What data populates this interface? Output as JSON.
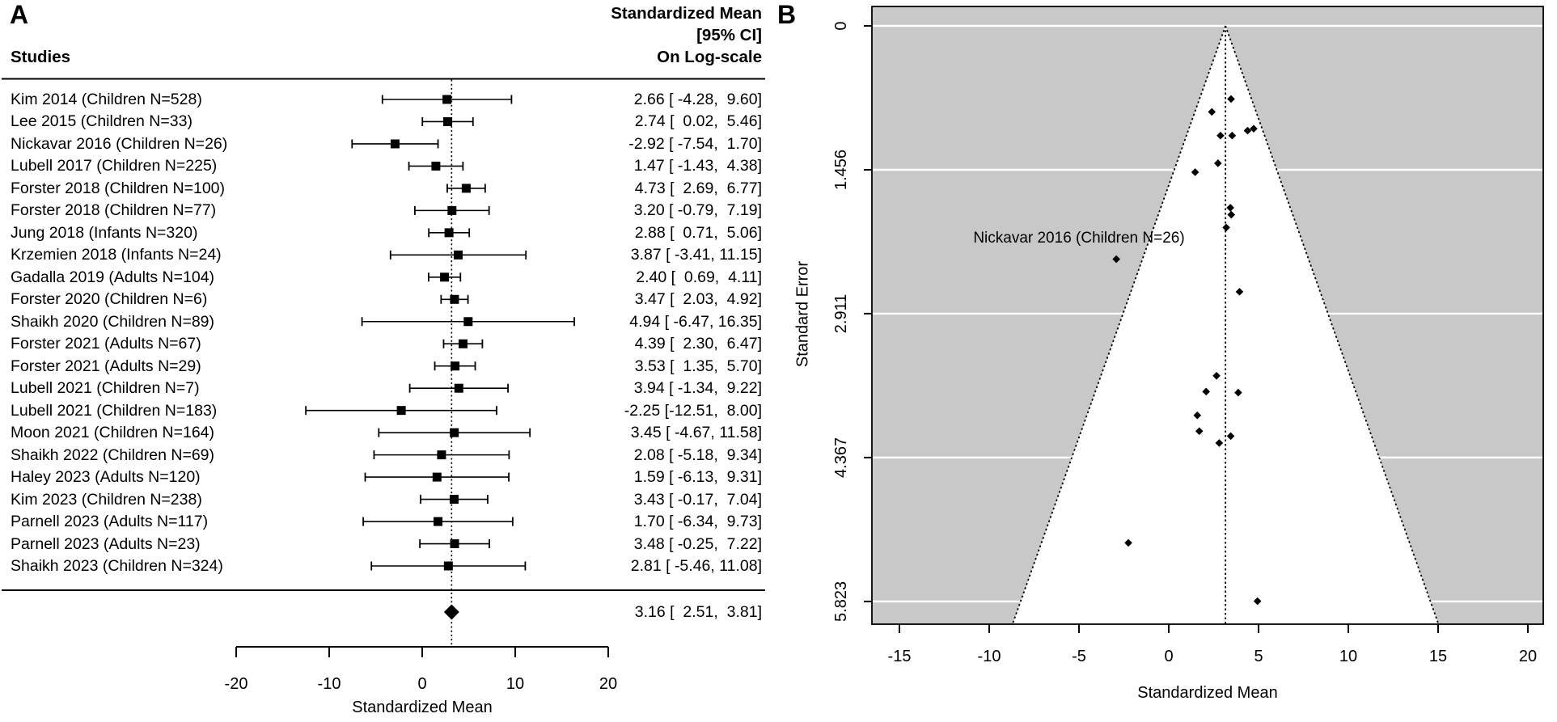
{
  "panel_a": {
    "label": "A",
    "col_header_left": "Studies",
    "col_header_right_lines": [
      "Standardized Mean",
      "[95% CI]",
      "On Log-scale"
    ],
    "xlabel": "Standardized Mean",
    "x_ticks": [
      -20,
      -10,
      0,
      10,
      20
    ]
  },
  "panel_b": {
    "label": "B",
    "xlabel": "Standardized Mean",
    "ylabel": "Standard Error",
    "x_ticks": [
      -15,
      -10,
      -5,
      0,
      5,
      10,
      15,
      20
    ],
    "y_tick_labels": [
      "0",
      "1.456",
      "2.911",
      "4.367",
      "5.823"
    ],
    "annotation": {
      "text": "Nickavar 2016 (Children N=26)",
      "x": -2.92,
      "se": 2.36
    },
    "center_line": 3.16
  },
  "chart_data": [
    {
      "type": "forest",
      "panel": "A",
      "studies_header": "Studies",
      "value_header": "Standardized Mean [95% CI] On Log-scale",
      "xlabel": "Standardized Mean",
      "x_ticks": [
        -20,
        -10,
        0,
        10,
        20
      ],
      "xlim": [
        -20,
        20
      ],
      "center_line": 3.16,
      "studies": [
        {
          "label": "Kim 2014 (Children N=528)",
          "est": 2.66,
          "lower": -4.28,
          "upper": 9.6,
          "se": 3.54,
          "display": "2.66 [ -4.28,  9.60]"
        },
        {
          "label": "Lee 2015 (Children N=33)",
          "est": 2.74,
          "lower": 0.02,
          "upper": 5.46,
          "se": 1.39,
          "display": "2.74 [  0.02,  5.46]"
        },
        {
          "label": "Nickavar 2016 (Children N=26)",
          "est": -2.92,
          "lower": -7.54,
          "upper": 1.7,
          "se": 2.36,
          "display": "-2.92 [ -7.54,  1.70]"
        },
        {
          "label": "Lubell 2017 (Children N=225)",
          "est": 1.47,
          "lower": -1.43,
          "upper": 4.38,
          "se": 1.48,
          "display": "1.47 [ -1.43,  4.38]"
        },
        {
          "label": "Forster 2018 (Children N=100)",
          "est": 4.73,
          "lower": 2.69,
          "upper": 6.77,
          "se": 1.04,
          "display": "4.73 [  2.69,  6.77]"
        },
        {
          "label": "Forster 2018 (Children N=77)",
          "est": 3.2,
          "lower": -0.79,
          "upper": 7.19,
          "se": 2.04,
          "display": "3.20 [ -0.79,  7.19]"
        },
        {
          "label": "Jung 2018 (Infants N=320)",
          "est": 2.88,
          "lower": 0.71,
          "upper": 5.06,
          "se": 1.11,
          "display": "2.88 [  0.71,  5.06]"
        },
        {
          "label": "Krzemien 2018 (Infants N=24)",
          "est": 3.87,
          "lower": -3.41,
          "upper": 11.15,
          "se": 3.71,
          "display": "3.87 [ -3.41, 11.15]"
        },
        {
          "label": "Gadalla 2019 (Adults N=104)",
          "est": 2.4,
          "lower": 0.69,
          "upper": 4.11,
          "se": 0.87,
          "display": "2.40 [  0.69,  4.11]"
        },
        {
          "label": "Forster 2020 (Children N=6)",
          "est": 3.47,
          "lower": 2.03,
          "upper": 4.92,
          "se": 0.74,
          "display": "3.47 [  2.03,  4.92]"
        },
        {
          "label": "Shaikh 2020 (Children N=89)",
          "est": 4.94,
          "lower": -6.47,
          "upper": 16.35,
          "se": 5.82,
          "display": "4.94 [ -6.47, 16.35]"
        },
        {
          "label": "Forster 2021 (Adults N=67)",
          "est": 4.39,
          "lower": 2.3,
          "upper": 6.47,
          "se": 1.06,
          "display": "4.39 [  2.30,  6.47]"
        },
        {
          "label": "Forster 2021 (Adults N=29)",
          "est": 3.53,
          "lower": 1.35,
          "upper": 5.7,
          "se": 1.11,
          "display": "3.53 [  1.35,  5.70]"
        },
        {
          "label": "Lubell 2021 (Children N=7)",
          "est": 3.94,
          "lower": -1.34,
          "upper": 9.22,
          "se": 2.69,
          "display": "3.94 [ -1.34,  9.22]"
        },
        {
          "label": "Lubell 2021 (Children N=183)",
          "est": -2.25,
          "lower": -12.51,
          "upper": 8.0,
          "se": 5.23,
          "display": "-2.25 [-12.51,  8.00]"
        },
        {
          "label": "Moon 2021 (Children N=164)",
          "est": 3.45,
          "lower": -4.67,
          "upper": 11.58,
          "se": 4.15,
          "display": "3.45 [ -4.67, 11.58]"
        },
        {
          "label": "Shaikh 2022 (Children N=69)",
          "est": 2.08,
          "lower": -5.18,
          "upper": 9.34,
          "se": 3.7,
          "display": "2.08 [ -5.18,  9.34]"
        },
        {
          "label": "Haley 2023 (Adults N=120)",
          "est": 1.59,
          "lower": -6.13,
          "upper": 9.31,
          "se": 3.94,
          "display": "1.59 [ -6.13,  9.31]"
        },
        {
          "label": "Kim 2023 (Children N=238)",
          "est": 3.43,
          "lower": -0.17,
          "upper": 7.04,
          "se": 1.84,
          "display": "3.43 [ -0.17,  7.04]"
        },
        {
          "label": "Parnell 2023 (Adults N=117)",
          "est": 1.7,
          "lower": -6.34,
          "upper": 9.73,
          "se": 4.1,
          "display": "1.70 [ -6.34,  9.73]"
        },
        {
          "label": "Parnell 2023 (Adults N=23)",
          "est": 3.48,
          "lower": -0.25,
          "upper": 7.22,
          "se": 1.91,
          "display": "3.48 [ -0.25,  7.22]"
        },
        {
          "label": "Shaikh 2023 (Children N=324)",
          "est": 2.81,
          "lower": -5.46,
          "upper": 11.08,
          "se": 4.22,
          "display": "2.81 [ -5.46, 11.08]"
        }
      ],
      "summary": {
        "est": 3.16,
        "lower": 2.51,
        "upper": 3.81,
        "display": "3.16 [  2.51,  3.81]"
      }
    },
    {
      "type": "scatter",
      "variant": "funnel",
      "panel": "B",
      "xlabel": "Standardized Mean",
      "ylabel": "Standard Error",
      "x_ticks": [
        -15,
        -10,
        -5,
        0,
        5,
        10,
        15,
        20
      ],
      "y_ticks": [
        0,
        1.456,
        2.911,
        4.367,
        5.823
      ],
      "y_axis": "standard error, 0 at top increasing downward",
      "center_line": 3.16,
      "pseudo_ci_multiplier": 1.96,
      "points_source": "chart_data[0].studies (x = est, y = se)",
      "annotation": {
        "text": "Nickavar 2016 (Children N=26)",
        "x": -2.92,
        "se": 2.36
      },
      "background_color": "#c8c8c8",
      "funnel_fill": "#ffffff"
    }
  ]
}
